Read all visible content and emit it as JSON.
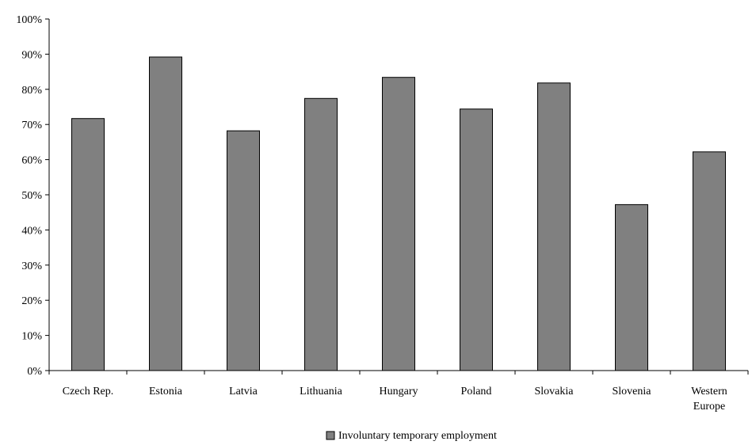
{
  "chart_data": {
    "type": "bar",
    "title": "",
    "xlabel": "",
    "ylabel": "",
    "categories": [
      "Czech Rep.",
      "Estonia",
      "Latvia",
      "Lithuania",
      "Hungary",
      "Poland",
      "Slovakia",
      "Slovenia",
      "Western Europe"
    ],
    "category_label_lines": [
      [
        "Czech Rep."
      ],
      [
        "Estonia"
      ],
      [
        "Latvia"
      ],
      [
        "Lithuania"
      ],
      [
        "Hungary"
      ],
      [
        "Poland"
      ],
      [
        "Slovakia"
      ],
      [
        "Slovenia"
      ],
      [
        "Western",
        "Europe"
      ]
    ],
    "series": [
      {
        "name": "Involuntary temporary employment",
        "values": [
          71.7,
          89.2,
          68.2,
          77.4,
          83.4,
          74.4,
          81.8,
          47.2,
          62.2
        ]
      }
    ],
    "ylim": [
      0,
      100
    ],
    "ytick_values": [
      0,
      10,
      20,
      30,
      40,
      50,
      60,
      70,
      80,
      90,
      100
    ],
    "ytick_labels": [
      "0%",
      "10%",
      "20%",
      "30%",
      "40%",
      "50%",
      "60%",
      "70%",
      "80%",
      "90%",
      "100%"
    ],
    "grid": false,
    "legend_position": "bottom-center",
    "colors": {
      "bar_fill": "#808080",
      "bar_stroke": "#000000",
      "axis": "#000000"
    }
  }
}
